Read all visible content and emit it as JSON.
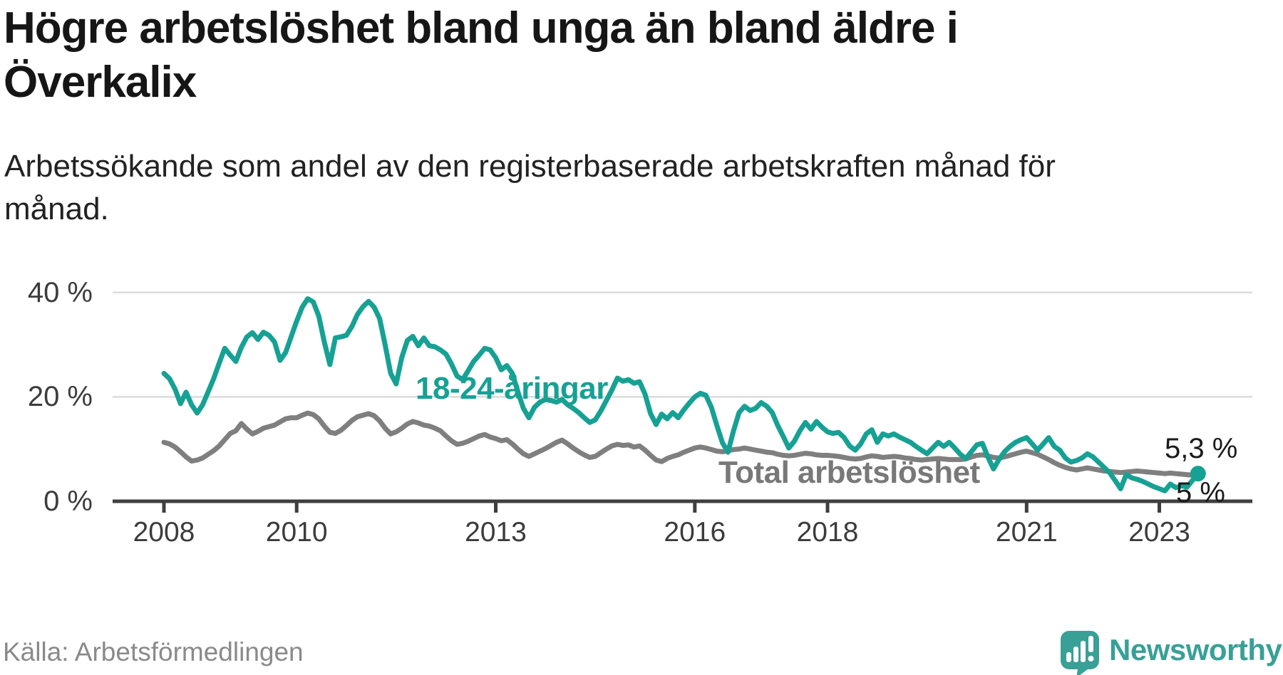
{
  "header": {
    "title_line1": "Högre arbetslöshet bland unga än bland äldre i",
    "title_line2": "Överkalix",
    "subtitle_line1": "Arbetssökande som andel av den registerbaserade arbetskraften månad för",
    "subtitle_line2": "månad."
  },
  "footer": {
    "source": "Källa: Arbetsförmedlingen",
    "brand": "Newsworthy"
  },
  "colors": {
    "youth_line": "#16a194",
    "total_line": "#7f7f7f",
    "total_label": "#787878",
    "gridline": "#dcdcdc",
    "axis": "#3f3f3f",
    "value_label": "#1b1b1b",
    "logo_teal": "#38a097"
  },
  "chart_data": {
    "type": "line",
    "title": "Högre arbetslöshet bland unga än bland äldre i Överkalix",
    "subtitle": "Arbetssökande som andel av den registerbaserade arbetskraften månad för månad.",
    "x_unit": "month",
    "x_start": "2008-01",
    "x_end": "2023-08",
    "x_tick_years": [
      2008,
      2010,
      2013,
      2016,
      2018,
      2021,
      2023
    ],
    "x_tick_labels": [
      "2008",
      "2010",
      "2013",
      "2016",
      "2018",
      "2021",
      "2023"
    ],
    "y_tick_values": [
      40,
      20,
      0
    ],
    "y_tick_labels": [
      "40 %",
      "20 %",
      "0 %"
    ],
    "grid_values": [
      40,
      20
    ],
    "ylim": [
      0,
      42
    ],
    "legend_position": "inline-labels",
    "series": [
      {
        "name": "18-24-åringar",
        "color": "#16a194",
        "end_label": "5,3 %",
        "end_value": 5.3,
        "values": [
          24.5,
          23.5,
          21.5,
          18.7,
          20.9,
          18.5,
          16.9,
          18.5,
          21.0,
          23.5,
          26.5,
          29.3,
          28.0,
          26.8,
          29.5,
          31.5,
          32.3,
          31.0,
          32.4,
          31.8,
          30.5,
          27.0,
          28.5,
          31.5,
          34.5,
          37.2,
          38.8,
          38.2,
          35.5,
          30.5,
          26.2,
          31.3,
          31.5,
          31.8,
          33.5,
          35.8,
          37.3,
          38.3,
          37.2,
          35.0,
          30.0,
          24.5,
          22.5,
          27.5,
          30.8,
          31.6,
          29.8,
          31.3,
          29.8,
          29.6,
          29.0,
          28.2,
          26.3,
          24.0,
          23.3,
          25.0,
          26.8,
          28.0,
          29.3,
          29.0,
          27.5,
          25.2,
          26.0,
          24.5,
          21.0,
          17.8,
          16.0,
          18.0,
          19.0,
          19.5,
          19.3,
          19.0,
          19.5,
          18.5,
          17.8,
          17.0,
          16.0,
          15.1,
          15.6,
          17.3,
          19.3,
          21.3,
          23.6,
          23.0,
          23.3,
          22.6,
          22.9,
          20.5,
          16.8,
          14.7,
          16.7,
          15.8,
          17.0,
          16.0,
          17.5,
          18.8,
          20.0,
          20.7,
          20.3,
          18.0,
          14.5,
          11.2,
          9.4,
          13.5,
          17.0,
          18.2,
          17.4,
          17.8,
          18.9,
          18.2,
          17.0,
          14.5,
          12.4,
          10.2,
          11.5,
          13.5,
          15.1,
          13.8,
          15.3,
          14.2,
          13.3,
          13.0,
          13.2,
          12.2,
          10.6,
          9.8,
          11.0,
          12.9,
          13.7,
          11.3,
          12.9,
          12.5,
          12.9,
          12.3,
          11.8,
          11.3,
          10.5,
          9.8,
          9.1,
          10.2,
          11.3,
          10.5,
          11.3,
          10.2,
          9.0,
          8.2,
          9.5,
          10.8,
          11.1,
          8.5,
          6.2,
          8.0,
          9.5,
          10.5,
          11.3,
          11.8,
          12.2,
          11.0,
          9.8,
          11.0,
          12.2,
          10.5,
          9.8,
          8.3,
          7.5,
          7.8,
          8.3,
          9.1,
          8.5,
          7.5,
          6.5,
          5.5,
          4.0,
          2.4,
          5.1,
          4.5,
          4.2,
          3.8,
          3.3,
          2.8,
          2.4,
          2.0,
          3.3,
          2.6,
          3.0,
          2.7,
          4.0,
          5.3
        ]
      },
      {
        "name": "Total arbetslöshet",
        "color": "#7f7f7f",
        "end_label": "5 %",
        "end_value": 5.0,
        "values": [
          11.3,
          11.0,
          10.4,
          9.5,
          8.5,
          7.7,
          7.9,
          8.3,
          9.0,
          9.7,
          10.6,
          11.8,
          13.0,
          13.5,
          14.9,
          13.8,
          12.9,
          13.4,
          14.0,
          14.3,
          14.6,
          15.2,
          15.8,
          16.0,
          16.0,
          16.5,
          16.9,
          16.6,
          15.8,
          14.4,
          13.2,
          13.0,
          13.6,
          14.5,
          15.5,
          16.2,
          16.5,
          16.8,
          16.4,
          15.4,
          14.0,
          12.9,
          13.3,
          14.0,
          14.8,
          15.3,
          15.0,
          14.6,
          14.4,
          14.0,
          13.5,
          12.5,
          11.6,
          10.9,
          11.1,
          11.5,
          12.0,
          12.5,
          12.8,
          12.3,
          12.0,
          11.6,
          11.8,
          11.0,
          10.0,
          9.1,
          8.6,
          9.1,
          9.6,
          10.1,
          10.7,
          11.3,
          11.7,
          11.0,
          10.2,
          9.5,
          8.9,
          8.4,
          8.6,
          9.3,
          10.0,
          10.6,
          10.9,
          10.7,
          10.8,
          10.4,
          10.6,
          9.8,
          8.8,
          7.9,
          7.6,
          8.2,
          8.6,
          8.9,
          9.4,
          9.8,
          10.2,
          10.4,
          10.2,
          9.9,
          9.6,
          9.5,
          9.7,
          9.9,
          10.0,
          10.2,
          10.0,
          9.8,
          9.6,
          9.4,
          9.3,
          9.0,
          8.8,
          8.7,
          8.8,
          9.0,
          9.2,
          9.1,
          8.9,
          8.8,
          8.8,
          8.7,
          8.6,
          8.4,
          8.2,
          8.1,
          8.2,
          8.5,
          8.7,
          8.6,
          8.4,
          8.5,
          8.6,
          8.5,
          8.3,
          8.2,
          8.0,
          7.9,
          8.0,
          8.1,
          8.2,
          8.1,
          8.0,
          8.0,
          8.0,
          8.1,
          8.5,
          8.8,
          8.9,
          8.7,
          8.4,
          8.3,
          8.5,
          8.8,
          9.1,
          9.4,
          9.6,
          9.3,
          9.0,
          8.5,
          8.0,
          7.4,
          6.9,
          6.5,
          6.2,
          6.0,
          6.2,
          6.4,
          6.2,
          6.0,
          5.8,
          5.7,
          5.6,
          5.5,
          5.6,
          5.7,
          5.8,
          5.7,
          5.6,
          5.5,
          5.4,
          5.3,
          5.4,
          5.3,
          5.2,
          5.1,
          5.0,
          5.0
        ]
      }
    ]
  }
}
